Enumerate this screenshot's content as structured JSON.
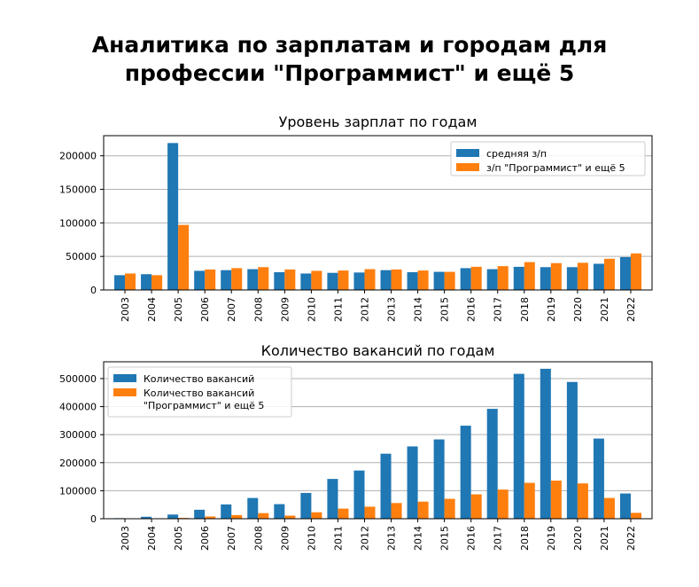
{
  "page": {
    "title_line1": "Аналитика по зарплатам и городам для",
    "title_line2": "профессии \"Программист\" и ещё 5"
  },
  "colors": {
    "series_a": "#1f77b4",
    "series_b": "#ff7f0e",
    "grid": "#b0b0b0"
  },
  "chart_data": [
    {
      "type": "bar",
      "title": "Уровень зарплат по годам",
      "categories": [
        "2003",
        "2004",
        "2005",
        "2006",
        "2007",
        "2008",
        "2009",
        "2010",
        "2011",
        "2012",
        "2013",
        "2014",
        "2015",
        "2016",
        "2017",
        "2018",
        "2019",
        "2020",
        "2021",
        "2022"
      ],
      "series": [
        {
          "name": "средняя з/п",
          "values": [
            22000,
            23500,
            219000,
            28500,
            29500,
            31000,
            26500,
            24500,
            25500,
            26000,
            29500,
            26500,
            27000,
            32500,
            31000,
            34500,
            34000,
            34000,
            39000,
            49000
          ]
        },
        {
          "name": "з/п \"Программист\" и ещё 5",
          "values": [
            24500,
            22000,
            97000,
            30500,
            32500,
            34000,
            30500,
            28500,
            29000,
            31000,
            30500,
            29000,
            27000,
            34500,
            35500,
            41500,
            40000,
            40500,
            46500,
            54500
          ]
        }
      ],
      "ylim": [
        0,
        230000
      ],
      "yticks": [
        0,
        50000,
        100000,
        150000,
        200000
      ],
      "grid": "horizontal",
      "legend": "top-right"
    },
    {
      "type": "bar",
      "title": "Количество вакансий по годам",
      "categories": [
        "2003",
        "2004",
        "2005",
        "2006",
        "2007",
        "2008",
        "2009",
        "2010",
        "2011",
        "2012",
        "2013",
        "2014",
        "2015",
        "2016",
        "2017",
        "2018",
        "2019",
        "2020",
        "2021",
        "2022"
      ],
      "series": [
        {
          "name": "Количество вакансий",
          "values": [
            2000,
            7000,
            15000,
            32000,
            51000,
            74000,
            52000,
            92000,
            142000,
            172000,
            232000,
            258000,
            283000,
            332000,
            392000,
            517000,
            535000,
            488000,
            286000,
            90000
          ]
        },
        {
          "name": "Количество вакансий \"Программист\" и ещё 5",
          "values": [
            0,
            1000,
            3000,
            8000,
            13000,
            20000,
            11000,
            23000,
            36000,
            43000,
            56000,
            61000,
            71000,
            87000,
            104000,
            128000,
            136000,
            126000,
            74000,
            21000
          ]
        }
      ],
      "ylim": [
        0,
        560000
      ],
      "yticks": [
        0,
        100000,
        200000,
        300000,
        400000,
        500000
      ],
      "grid": "horizontal",
      "legend": "top-left"
    }
  ]
}
